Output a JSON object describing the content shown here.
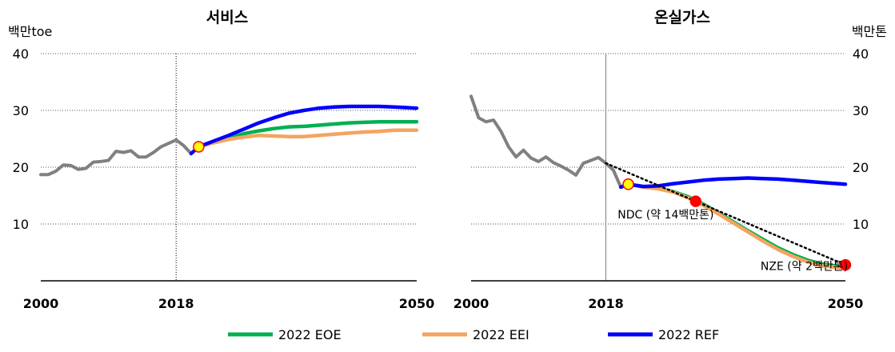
{
  "chart_data": [
    {
      "type": "line",
      "title": "서비스",
      "ylabel": "백만toe",
      "xlim": [
        2000,
        2050
      ],
      "ylim": [
        0,
        40
      ],
      "y_ticks": [
        10,
        20,
        30,
        40
      ],
      "x_ticks": [
        2000,
        2018,
        2050
      ],
      "grid": "horizontal dotted",
      "vertical_marker_year": 2018,
      "series": [
        {
          "name": "",
          "color": "#808080",
          "x": [
            2000,
            2001,
            2002,
            2003,
            2004,
            2005,
            2006,
            2007,
            2008,
            2009,
            2010,
            2011,
            2012,
            2013,
            2014,
            2015,
            2016,
            2017,
            2018,
            2019,
            2020
          ],
          "y": [
            18.7,
            18.7,
            19.3,
            20.4,
            20.3,
            19.6,
            19.8,
            20.9,
            21.0,
            21.2,
            22.8,
            22.6,
            22.9,
            21.8,
            21.8,
            22.6,
            23.6,
            24.2,
            24.8,
            23.8,
            22.4
          ]
        },
        {
          "name": "2022 EOE",
          "color": "#00b050",
          "x": [
            2021,
            2023,
            2025,
            2027,
            2029,
            2031,
            2033,
            2035,
            2037,
            2039,
            2041,
            2043,
            2045,
            2047,
            2050
          ],
          "y": [
            23.6,
            24.4,
            25.1,
            25.9,
            26.4,
            26.8,
            27.1,
            27.2,
            27.4,
            27.6,
            27.8,
            27.9,
            28.0,
            28.0,
            28.0
          ]
        },
        {
          "name": "2022 EEI",
          "color": "#f4a460",
          "x": [
            2021,
            2023,
            2025,
            2027,
            2029,
            2031,
            2033,
            2035,
            2037,
            2039,
            2041,
            2043,
            2045,
            2047,
            2050
          ],
          "y": [
            23.6,
            24.3,
            24.9,
            25.3,
            25.6,
            25.5,
            25.4,
            25.4,
            25.6,
            25.8,
            26.0,
            26.2,
            26.3,
            26.5,
            26.5
          ]
        },
        {
          "name": "2022 REF",
          "color": "#0000ff",
          "x": [
            2020,
            2021,
            2023,
            2025,
            2027,
            2029,
            2031,
            2033,
            2035,
            2037,
            2039,
            2041,
            2043,
            2045,
            2047,
            2050
          ],
          "y": [
            22.4,
            23.6,
            24.6,
            25.6,
            26.7,
            27.8,
            28.7,
            29.5,
            30.0,
            30.4,
            30.6,
            30.7,
            30.7,
            30.7,
            30.6,
            30.4
          ]
        }
      ],
      "markers": [
        {
          "x": 2021,
          "y": 23.6,
          "fill": "#ffff00",
          "stroke": "#ff0000"
        }
      ]
    },
    {
      "type": "line",
      "title": "온실가스",
      "ylabel": "백만톤",
      "xlim": [
        2000,
        2050
      ],
      "ylim": [
        0,
        40
      ],
      "y_ticks": [
        10,
        20,
        30,
        40
      ],
      "x_ticks": [
        2000,
        2018,
        2050
      ],
      "grid": "horizontal dotted",
      "vertical_marker_year": 2018,
      "series": [
        {
          "name": "",
          "color": "#808080",
          "x": [
            2000,
            2001,
            2002,
            2003,
            2004,
            2005,
            2006,
            2007,
            2008,
            2009,
            2010,
            2011,
            2012,
            2013,
            2014,
            2015,
            2016,
            2017,
            2018,
            2019,
            2020,
            2021
          ],
          "y": [
            32.5,
            28.7,
            28.0,
            28.3,
            26.3,
            23.6,
            21.8,
            23.0,
            21.6,
            21.0,
            21.8,
            20.8,
            20.2,
            19.5,
            18.6,
            20.7,
            21.2,
            21.7,
            20.7,
            19.5,
            16.5,
            17.0
          ]
        },
        {
          "name": "2022 EOE",
          "color": "#00b050",
          "x": [
            2021,
            2023,
            2025,
            2027,
            2029,
            2031,
            2033,
            2035,
            2037,
            2039,
            2041,
            2043,
            2045,
            2047,
            2050
          ],
          "y": [
            17.0,
            16.6,
            16.3,
            15.7,
            14.8,
            13.5,
            12.0,
            10.4,
            8.8,
            7.3,
            5.8,
            4.6,
            3.6,
            2.9,
            2.4
          ]
        },
        {
          "name": "2022 EEI",
          "color": "#f4a460",
          "x": [
            2021,
            2023,
            2025,
            2027,
            2029,
            2031,
            2033,
            2035,
            2037,
            2039,
            2041,
            2043,
            2045,
            2047,
            2050
          ],
          "y": [
            17.0,
            16.5,
            16.2,
            15.6,
            14.6,
            13.3,
            11.8,
            10.2,
            8.6,
            7.0,
            5.5,
            4.3,
            3.3,
            2.6,
            2.2
          ]
        },
        {
          "name": "2022 REF",
          "color": "#0000ff",
          "x": [
            2020,
            2021,
            2023,
            2025,
            2027,
            2029,
            2031,
            2033,
            2035,
            2037,
            2039,
            2041,
            2043,
            2045,
            2047,
            2050
          ],
          "y": [
            16.5,
            17.0,
            16.6,
            16.7,
            17.1,
            17.4,
            17.7,
            17.9,
            18.0,
            18.1,
            18.0,
            17.9,
            17.7,
            17.5,
            17.3,
            17.0
          ]
        },
        {
          "name": "",
          "color": "#000000",
          "style": "dotted",
          "x": [
            2018,
            2030,
            2050
          ],
          "y": [
            20.7,
            14.0,
            2.8
          ]
        }
      ],
      "markers": [
        {
          "x": 2021,
          "y": 17.0,
          "fill": "#ffff00",
          "stroke": "#ff0000"
        },
        {
          "x": 2030,
          "y": 14.0,
          "fill": "#ff0000",
          "stroke": "#ff0000"
        },
        {
          "x": 2050,
          "y": 2.8,
          "fill": "#ff0000",
          "stroke": "#ff0000"
        }
      ],
      "annotations": [
        {
          "text": "NDC (약 14백만톤)",
          "x": 2026,
          "y": 11.0
        },
        {
          "text": "NZE (약 2백만톤)",
          "x": 2044.5,
          "y": 1.9
        }
      ]
    }
  ],
  "legend": [
    {
      "label": "2022 EOE",
      "color": "#00b050"
    },
    {
      "label": "2022 EEI",
      "color": "#f4a460"
    },
    {
      "label": "2022 REF",
      "color": "#0000ff"
    }
  ]
}
